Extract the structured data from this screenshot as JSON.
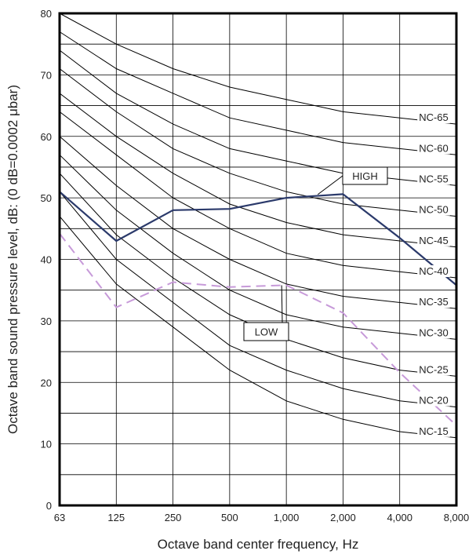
{
  "chart_data": {
    "type": "line",
    "title": "",
    "xlabel": "Octave band center frequency, Hz",
    "ylabel": "Octave band sound pressure level, dB: (0 dB=0.0002 μbar)",
    "x_categories": [
      "63",
      "125",
      "250",
      "500",
      "1,000",
      "2,000",
      "4,000",
      "8,000"
    ],
    "ylim": [
      0,
      80
    ],
    "y_ticks": [
      0,
      10,
      20,
      30,
      40,
      50,
      60,
      70,
      80
    ],
    "grid": true,
    "nc_curves": [
      {
        "name": "NC-65",
        "values": [
          80,
          75,
          71,
          68,
          66,
          64,
          63,
          62
        ]
      },
      {
        "name": "NC-60",
        "values": [
          77,
          71,
          67,
          63,
          61,
          59,
          58,
          57
        ]
      },
      {
        "name": "NC-55",
        "values": [
          74,
          67,
          62,
          58,
          56,
          54,
          53,
          52
        ]
      },
      {
        "name": "NC-50",
        "values": [
          71,
          64,
          58,
          54,
          51,
          49,
          48,
          47
        ]
      },
      {
        "name": "NC-45",
        "values": [
          67,
          60,
          54,
          49,
          46,
          44,
          43,
          42
        ]
      },
      {
        "name": "NC-40",
        "values": [
          64,
          57,
          50,
          45,
          41,
          39,
          38,
          37
        ]
      },
      {
        "name": "NC-35",
        "values": [
          60,
          52,
          45,
          40,
          36,
          34,
          33,
          32
        ]
      },
      {
        "name": "NC-30",
        "values": [
          57,
          48,
          41,
          35,
          31,
          29,
          28,
          27
        ]
      },
      {
        "name": "NC-25",
        "values": [
          54,
          44,
          37,
          31,
          27,
          24,
          22,
          21
        ]
      },
      {
        "name": "NC-20",
        "values": [
          51,
          40,
          33,
          26,
          22,
          19,
          17,
          16
        ]
      },
      {
        "name": "NC-15",
        "values": [
          47,
          36,
          29,
          22,
          17,
          14,
          12,
          11
        ]
      }
    ],
    "series": [
      {
        "name": "HIGH",
        "values": [
          51,
          43,
          48,
          48.2,
          50,
          50.6,
          43.5,
          35.8
        ],
        "color": "#2b3a6b",
        "style": "solid"
      },
      {
        "name": "LOW",
        "values": [
          44.2,
          32.2,
          36.3,
          35.5,
          35.8,
          31.3,
          21.6,
          13
        ],
        "color": "#c79ad9",
        "style": "dashed"
      }
    ],
    "annotations": [
      {
        "text": "HIGH",
        "points_to": "HIGH"
      },
      {
        "text": "LOW",
        "points_to": "LOW"
      }
    ]
  }
}
